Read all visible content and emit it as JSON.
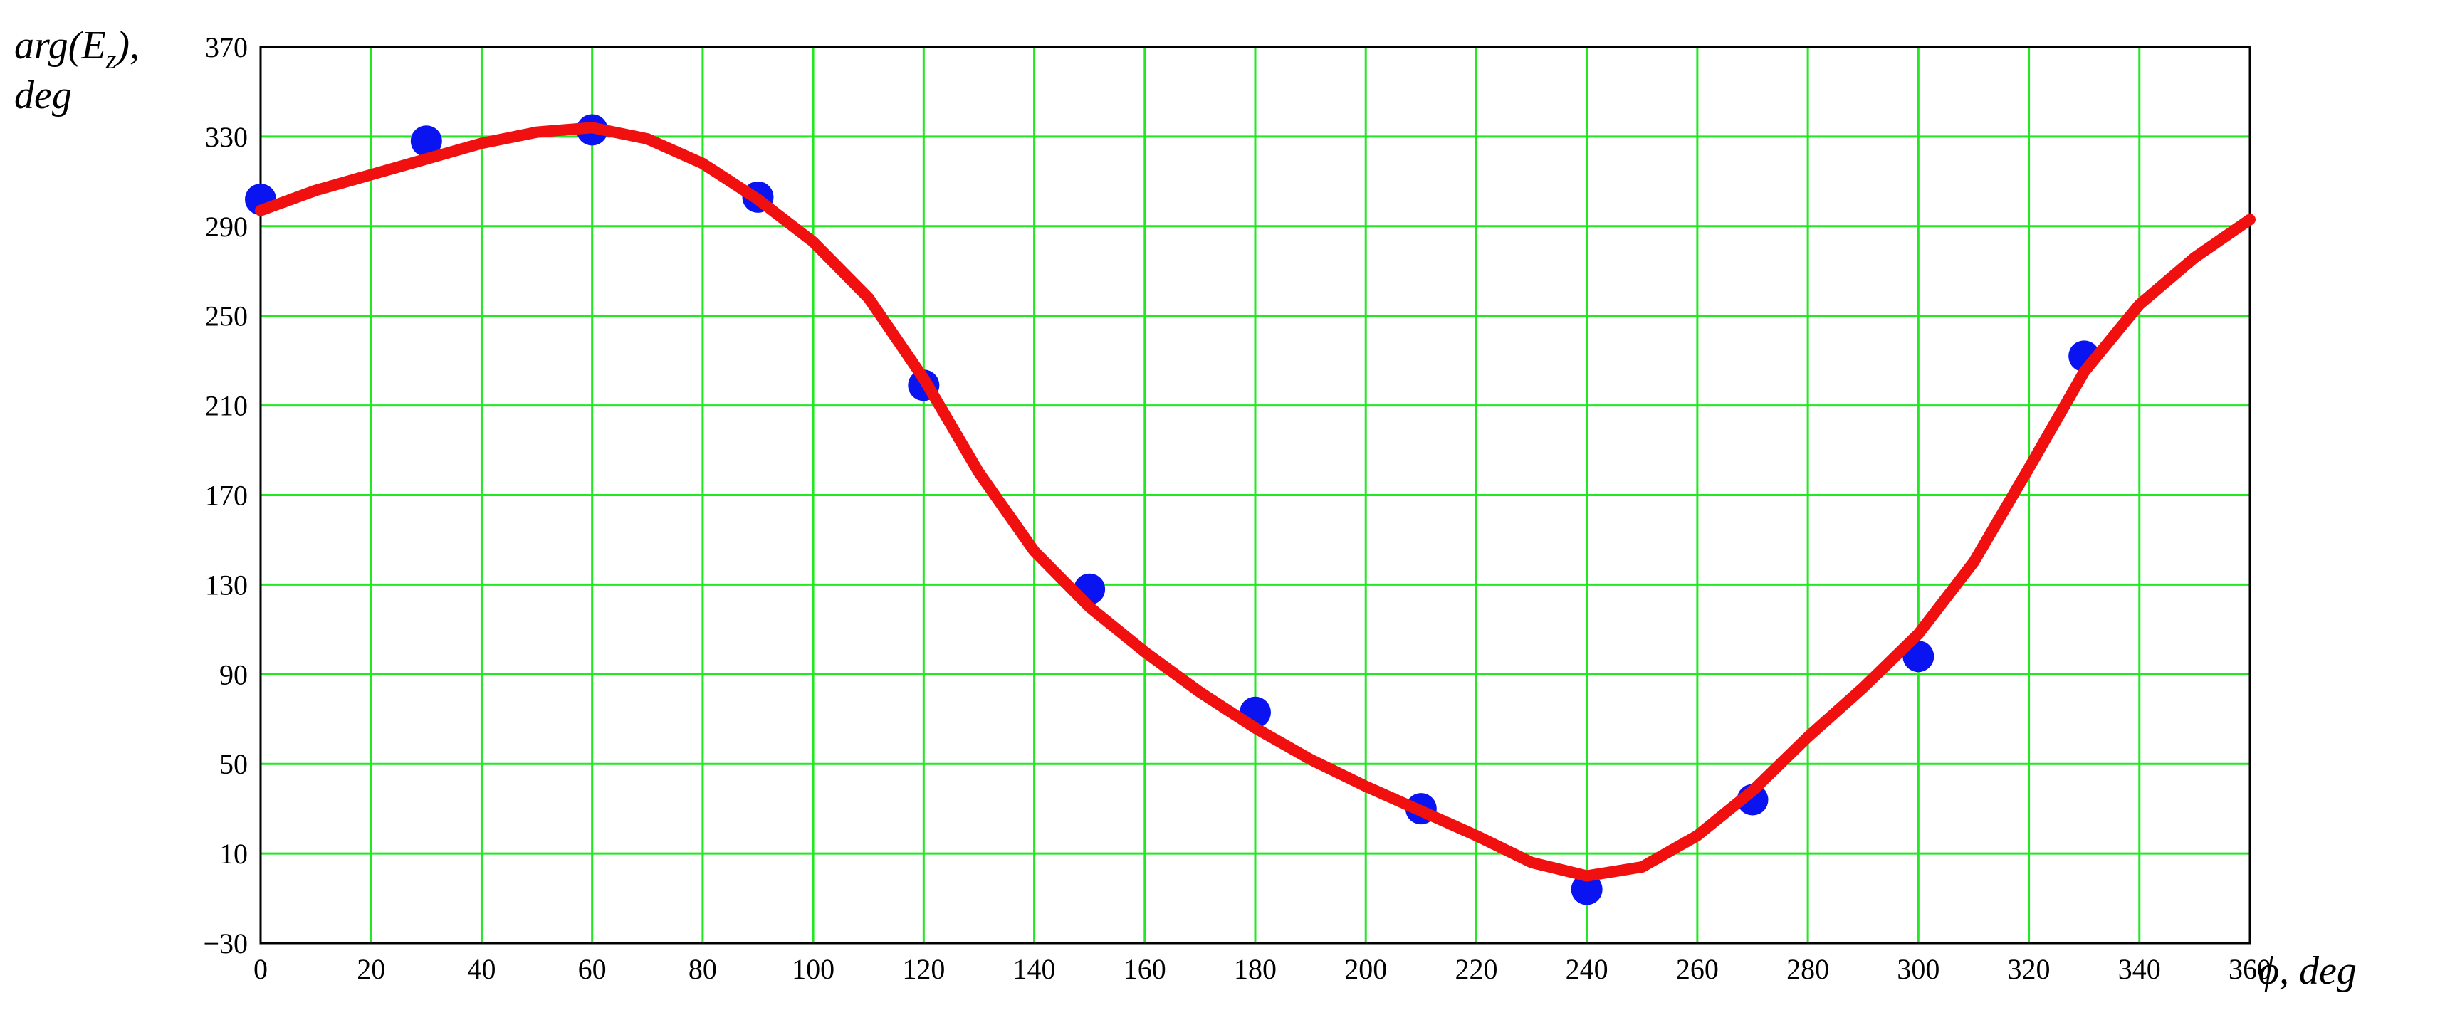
{
  "chart_data": {
    "type": "scatter",
    "ylabel": {
      "main": "arg(E",
      "subscript": "z",
      "close": "),",
      "unit": "deg"
    },
    "xlabel": "ϕ, deg",
    "xlim": [
      0,
      360
    ],
    "xticks": [
      0,
      20,
      40,
      60,
      80,
      100,
      120,
      140,
      160,
      180,
      200,
      220,
      240,
      260,
      280,
      300,
      320,
      340,
      360
    ],
    "ylim": [
      -30,
      370
    ],
    "yticks": [
      {
        "value": -30,
        "label": "−30"
      },
      10,
      50,
      90,
      130,
      170,
      210,
      250,
      290,
      330,
      370
    ],
    "grid": true,
    "grid_color": "#22e822",
    "series": [
      {
        "mode": "markers",
        "color": "#0a14f0",
        "x": [
          0,
          30,
          60,
          90,
          120,
          150,
          180,
          210,
          240,
          270,
          300,
          330
        ],
        "values": [
          302,
          328,
          333,
          303,
          219,
          128,
          73,
          30,
          -6,
          34,
          98,
          232
        ]
      },
      {
        "mode": "line",
        "color": "#f01010",
        "x": [
          0,
          10,
          20,
          30,
          40,
          50,
          60,
          70,
          80,
          90,
          100,
          110,
          120,
          130,
          140,
          150,
          160,
          170,
          180,
          190,
          200,
          210,
          220,
          230,
          240,
          250,
          260,
          270,
          280,
          290,
          300,
          310,
          320,
          330,
          340,
          350,
          360
        ],
        "values": [
          297,
          306,
          313,
          320,
          327,
          332,
          334,
          329,
          318,
          302,
          283,
          258,
          222,
          180,
          145,
          120,
          100,
          82,
          66,
          52,
          40,
          29,
          18,
          6,
          0,
          4,
          18,
          38,
          62,
          84,
          108,
          140,
          182,
          225,
          255,
          276,
          293
        ]
      }
    ]
  }
}
